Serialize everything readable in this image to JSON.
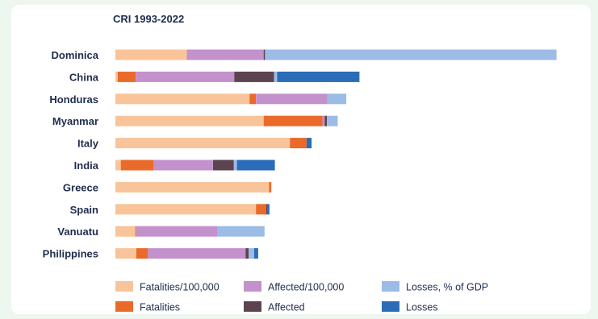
{
  "chart_data": {
    "type": "bar",
    "orientation": "horizontal",
    "stacked": true,
    "title": "CRI 1993-2022",
    "categories": [
      "Dominica",
      "China",
      "Honduras",
      "Myanmar",
      "Italy",
      "India",
      "Greece",
      "Spain",
      "Vanuatu",
      "Philippines"
    ],
    "series": [
      {
        "name": "Fatalities/100,000",
        "color": "#f9c49a",
        "values": [
          15.8,
          0.5,
          29.7,
          32.8,
          38.6,
          1.2,
          34.0,
          31.1,
          4.4,
          4.6
        ]
      },
      {
        "name": "Fatalities",
        "color": "#ea6a2a",
        "values": [
          0,
          4.0,
          1.4,
          13.0,
          3.7,
          7.2,
          0.5,
          2.3,
          0.2,
          2.6
        ]
      },
      {
        "name": "Affected/100,000",
        "color": "#c391cc",
        "values": [
          17.0,
          21.8,
          15.8,
          0.5,
          0,
          13.2,
          0,
          0,
          17.9,
          21.6
        ]
      },
      {
        "name": "Affected",
        "color": "#5b4450",
        "values": [
          0.3,
          8.8,
          0,
          0.5,
          0,
          4.6,
          0,
          0.3,
          0,
          0.7
        ]
      },
      {
        "name": "Losses, % of GDP",
        "color": "#9cbce6",
        "values": [
          64.5,
          0.7,
          4.2,
          2.4,
          0,
          0.7,
          0,
          0,
          10.5,
          1.2
        ]
      },
      {
        "name": "Losses",
        "color": "#2b6cb8",
        "values": [
          0,
          18.2,
          0,
          0,
          1.1,
          8.4,
          0,
          0.4,
          0,
          0.9
        ]
      }
    ],
    "grid": false,
    "legend_position": "bottom"
  }
}
